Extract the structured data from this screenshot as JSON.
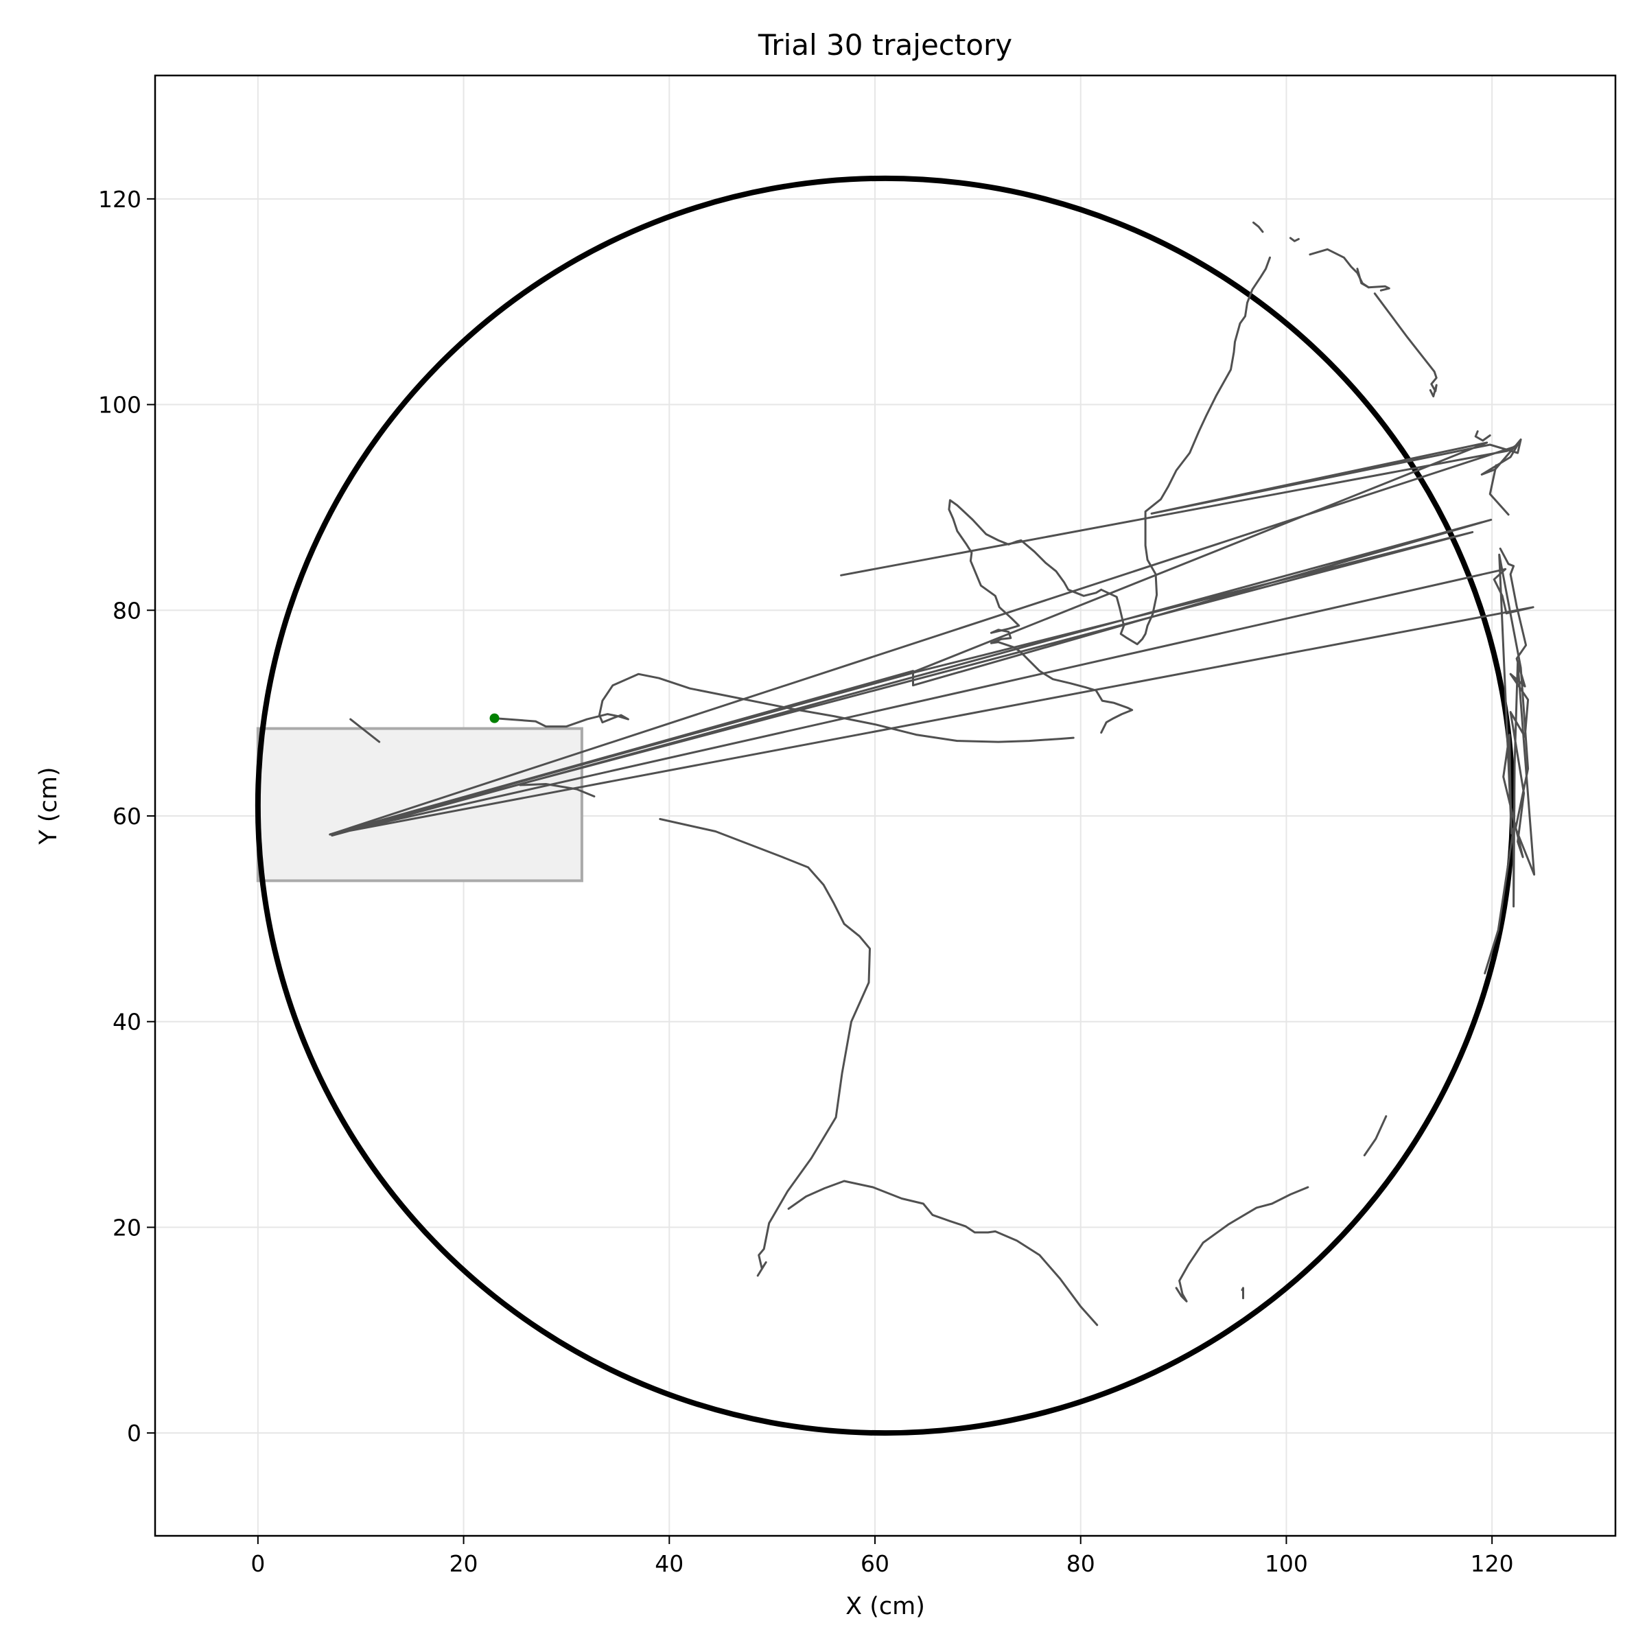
{
  "chart_data": {
    "type": "line",
    "title": "Trial 30 trajectory",
    "xlabel": "X (cm)",
    "ylabel": "Y (cm)",
    "xlim": [
      -10,
      132
    ],
    "ylim": [
      -10,
      132
    ],
    "x_ticks": [
      0,
      20,
      40,
      60,
      80,
      100,
      120
    ],
    "y_ticks": [
      0,
      20,
      40,
      60,
      80,
      100,
      120
    ],
    "x_tick_labels": [
      "0",
      "20",
      "40",
      "60",
      "80",
      "100",
      "120"
    ],
    "y_tick_labels": [
      "0",
      "20",
      "40",
      "60",
      "80",
      "100",
      "120"
    ],
    "grid": true,
    "arena": {
      "shape": "circle",
      "center": [
        61,
        61
      ],
      "radius": 61,
      "color": "#000000"
    },
    "start_zone": {
      "shape": "rectangle",
      "x": [
        0,
        31.5
      ],
      "y": [
        53.7,
        68.5
      ],
      "fill": "#f0f0f0",
      "edge": "#aaaaaa"
    },
    "start_point": {
      "x": 23,
      "y": 69.5,
      "color": "#008000"
    },
    "trajectory_color": "#505050",
    "segments": [
      [
        [
          23,
          69.5
        ],
        [
          27,
          69.2
        ],
        [
          28,
          68.7
        ],
        [
          30,
          68.7
        ],
        [
          32,
          69.4
        ],
        [
          34,
          69.9
        ],
        [
          35,
          69.7
        ],
        [
          36,
          69.4
        ],
        [
          35.3,
          69.8
        ],
        [
          34.5,
          69.5
        ],
        [
          33.5,
          69.1
        ],
        [
          33.2,
          69.8
        ],
        [
          33.5,
          71.2
        ],
        [
          34.5,
          72.7
        ],
        [
          37,
          73.8
        ],
        [
          39,
          73.4
        ],
        [
          42,
          72.4
        ],
        [
          46,
          71.6
        ],
        [
          52,
          70.4
        ],
        [
          56,
          69.7
        ],
        [
          60,
          68.9
        ],
        [
          64,
          67.9
        ],
        [
          68,
          67.3
        ],
        [
          72,
          67.2
        ],
        [
          75,
          67.3
        ],
        [
          78,
          67.5
        ],
        [
          79.3,
          67.6
        ]
      ],
      [
        [
          9,
          69.4
        ],
        [
          11.8,
          67.2
        ]
      ],
      [
        [
          25.5,
          63
        ],
        [
          28,
          63.1
        ],
        [
          31,
          62.6
        ],
        [
          32.7,
          61.9
        ]
      ],
      [
        [
          82,
          68.1
        ],
        [
          82.5,
          69.1
        ],
        [
          83.2,
          69.5
        ],
        [
          84,
          69.9
        ],
        [
          85,
          70.3
        ],
        [
          84.6,
          70.5
        ],
        [
          83.2,
          71
        ],
        [
          82.1,
          71.2
        ],
        [
          81.5,
          72.2
        ],
        [
          80.5,
          72.5
        ],
        [
          79,
          72.9
        ],
        [
          77.3,
          73.3
        ],
        [
          76,
          74.1
        ],
        [
          74.7,
          75.4
        ],
        [
          74.1,
          76
        ],
        [
          73.5,
          76.4
        ],
        [
          72,
          76.9
        ],
        [
          71.3,
          76.8
        ],
        [
          72.3,
          77.2
        ],
        [
          73.2,
          77.3
        ],
        [
          73,
          77.9
        ],
        [
          72,
          78.1
        ],
        [
          71.3,
          77.8
        ],
        [
          73,
          78.2
        ],
        [
          74,
          78.5
        ],
        [
          73.3,
          79.2
        ],
        [
          72.1,
          80.3
        ],
        [
          71.7,
          81.4
        ],
        [
          70.3,
          82.4
        ],
        [
          69.8,
          83.6
        ],
        [
          69.3,
          84.8
        ],
        [
          69.4,
          85.6
        ],
        [
          68.9,
          86.4
        ],
        [
          68,
          87.7
        ],
        [
          67.6,
          88.9
        ],
        [
          67.2,
          89.8
        ],
        [
          67.3,
          90.7
        ],
        [
          68,
          90.2
        ],
        [
          69.5,
          88.8
        ],
        [
          70.8,
          87.4
        ],
        [
          72,
          86.8
        ],
        [
          73,
          86.4
        ],
        [
          73.8,
          86.7
        ],
        [
          74.2,
          86.8
        ],
        [
          75.5,
          85.7
        ],
        [
          76.6,
          84.6
        ],
        [
          77.6,
          83.8
        ],
        [
          78.4,
          82.7
        ],
        [
          78.8,
          82
        ],
        [
          80.3,
          81.4
        ],
        [
          81.5,
          81.7
        ],
        [
          82,
          82
        ]
      ],
      [
        [
          82,
          82
        ],
        [
          83.5,
          81.3
        ],
        [
          83.8,
          80.2
        ],
        [
          84.2,
          78.5
        ],
        [
          83.9,
          77.7
        ],
        [
          84.5,
          77.3
        ],
        [
          85.5,
          76.7
        ],
        [
          86,
          77.2
        ],
        [
          86.3,
          77.7
        ],
        [
          86.5,
          78.5
        ],
        [
          87,
          79.6
        ],
        [
          87.4,
          81.5
        ],
        [
          87.3,
          83.5
        ],
        [
          86.5,
          84.9
        ],
        [
          86.3,
          86.3
        ],
        [
          86.3,
          88
        ],
        [
          86.3,
          89.6
        ],
        [
          87.8,
          90.8
        ],
        [
          88.5,
          92
        ],
        [
          89.3,
          93.6
        ],
        [
          90.6,
          95.3
        ],
        [
          91.5,
          97.4
        ],
        [
          92.2,
          98.9
        ],
        [
          93.2,
          100.9
        ],
        [
          94.6,
          103.4
        ],
        [
          94.9,
          105.1
        ],
        [
          95,
          106.1
        ],
        [
          95.5,
          107.9
        ],
        [
          96,
          108.6
        ],
        [
          96.2,
          109.9
        ],
        [
          96.7,
          111.2
        ],
        [
          97.5,
          112.4
        ],
        [
          98,
          113.2
        ],
        [
          98.4,
          114.3
        ]
      ],
      [
        [
          96.8,
          117.7
        ],
        [
          97.3,
          117.3
        ],
        [
          97.7,
          116.8
        ]
      ],
      [
        [
          100.4,
          116.2
        ],
        [
          100.8,
          115.9
        ],
        [
          101.2,
          116.1
        ]
      ],
      [
        [
          102.3,
          114.6
        ],
        [
          104,
          115.1
        ],
        [
          105.6,
          114.3
        ],
        [
          106.3,
          113.4
        ],
        [
          106.9,
          112.8
        ],
        [
          107.4,
          111.8
        ],
        [
          108,
          111.4
        ],
        [
          109.6,
          111.5
        ],
        [
          110,
          111.3
        ],
        [
          109.2,
          111.1
        ]
      ],
      [
        [
          106.9,
          113.2
        ],
        [
          107.3,
          111.8
        ],
        [
          108,
          111.4
        ]
      ],
      [
        [
          108.6,
          110.8
        ],
        [
          111.8,
          106.5
        ],
        [
          114.4,
          103.2
        ],
        [
          114.6,
          102.6
        ],
        [
          114.1,
          102
        ],
        [
          114.5,
          101.3
        ],
        [
          114.6,
          101.9
        ],
        [
          114.3,
          100.8
        ],
        [
          114,
          101.4
        ]
      ],
      [
        [
          118.6,
          97.4
        ],
        [
          118.4,
          96.9
        ],
        [
          119.1,
          96.5
        ],
        [
          119.8,
          97
        ]
      ],
      [
        [
          56.7,
          83.4
        ],
        [
          121.5,
          95.5
        ],
        [
          122.3,
          96
        ],
        [
          122.8,
          96.6
        ],
        [
          122.5,
          95.3
        ],
        [
          119.8,
          96.1
        ],
        [
          86.9,
          89.4
        ],
        [
          119.5,
          96.3
        ],
        [
          64,
          74.1
        ],
        [
          7,
          58.2
        ],
        [
          122.2,
          95.9
        ],
        [
          120.3,
          93.7
        ],
        [
          119,
          93.2
        ],
        [
          121.8,
          94.9
        ],
        [
          122.8,
          96.6
        ]
      ],
      [
        [
          120.4,
          94.1
        ],
        [
          119.8,
          91.3
        ],
        [
          121.6,
          89.3
        ]
      ],
      [
        [
          7,
          58.2
        ],
        [
          121.3,
          84
        ],
        [
          120.2,
          83
        ],
        [
          121,
          81.4
        ],
        [
          121.4,
          79.7
        ],
        [
          124,
          80.3
        ],
        [
          7,
          58.2
        ],
        [
          118.1,
          87.6
        ],
        [
          64,
          74
        ],
        [
          7,
          58.2
        ],
        [
          63.7,
          74.1
        ],
        [
          63.7,
          72.7
        ],
        [
          119.9,
          88.8
        ],
        [
          7.2,
          58.1
        ]
      ],
      [
        [
          120.8,
          86
        ],
        [
          121.6,
          84.5
        ],
        [
          122.1,
          84.3
        ],
        [
          121.8,
          83.5
        ],
        [
          122.4,
          80.4
        ],
        [
          123.3,
          76.6
        ],
        [
          122.4,
          75.3
        ],
        [
          123.2,
          72.6
        ],
        [
          121.8,
          73.8
        ],
        [
          123.5,
          71.3
        ],
        [
          123.2,
          67.7
        ],
        [
          121.8,
          70.1
        ],
        [
          123.1,
          62.2
        ],
        [
          122.5,
          57.5
        ],
        [
          123,
          56
        ],
        [
          121.1,
          63.8
        ],
        [
          121.7,
          67.9
        ],
        [
          121.8,
          61.8
        ],
        [
          121.9,
          58.3
        ],
        [
          120.7,
          85.4
        ],
        [
          122.8,
          74.4
        ],
        [
          123.5,
          64.6
        ],
        [
          122.3,
          58.8
        ],
        [
          124.1,
          54.3
        ],
        [
          122.5,
          74.9
        ],
        [
          122.2,
          65.1
        ],
        [
          122.1,
          51.2
        ],
        [
          122.1,
          58.8
        ],
        [
          120.6,
          48.9
        ],
        [
          119.3,
          44.7
        ]
      ],
      [
        [
          39.1,
          59.7
        ],
        [
          44.5,
          58.5
        ],
        [
          51,
          56
        ],
        [
          53.5,
          55
        ],
        [
          55,
          53.3
        ],
        [
          56,
          51.5
        ],
        [
          57,
          49.5
        ],
        [
          58.5,
          48.3
        ],
        [
          59.5,
          47.1
        ],
        [
          59.4,
          43.8
        ],
        [
          57.7,
          40
        ],
        [
          56.8,
          35
        ],
        [
          56.2,
          30.7
        ],
        [
          53.8,
          26.7
        ],
        [
          51.5,
          23.5
        ],
        [
          49.7,
          20.4
        ],
        [
          49.2,
          17.9
        ],
        [
          48.7,
          17.3
        ],
        [
          49,
          16
        ],
        [
          49.4,
          16.6
        ],
        [
          48.6,
          15.3
        ]
      ],
      [
        [
          51.6,
          21.8
        ],
        [
          53.3,
          23
        ],
        [
          55.1,
          23.8
        ],
        [
          57,
          24.5
        ],
        [
          59.8,
          23.9
        ],
        [
          62.6,
          22.8
        ],
        [
          64.7,
          22.3
        ],
        [
          65.6,
          21.2
        ],
        [
          67.3,
          20.6
        ],
        [
          68.8,
          20.1
        ],
        [
          69.7,
          19.5
        ],
        [
          71,
          19.5
        ],
        [
          71.7,
          19.6
        ],
        [
          73.8,
          18.7
        ],
        [
          76,
          17.3
        ],
        [
          78,
          15
        ],
        [
          80,
          12.3
        ],
        [
          81.6,
          10.5
        ]
      ],
      [
        [
          89.3,
          14.1
        ],
        [
          89.8,
          13.3
        ],
        [
          90.3,
          12.8
        ],
        [
          89.9,
          13.5
        ],
        [
          89.6,
          14.8
        ],
        [
          90.5,
          16.4
        ],
        [
          91.9,
          18.5
        ],
        [
          94.4,
          20.3
        ],
        [
          97.1,
          21.9
        ],
        [
          98.6,
          22.3
        ],
        [
          100.4,
          23.2
        ],
        [
          102.1,
          23.9
        ]
      ],
      [
        [
          95.7,
          13.9
        ],
        [
          95.8,
          14.1
        ],
        [
          95.8,
          13.1
        ]
      ],
      [
        [
          107.6,
          27
        ],
        [
          108.7,
          28.6
        ],
        [
          109.7,
          30.8
        ]
      ]
    ]
  }
}
